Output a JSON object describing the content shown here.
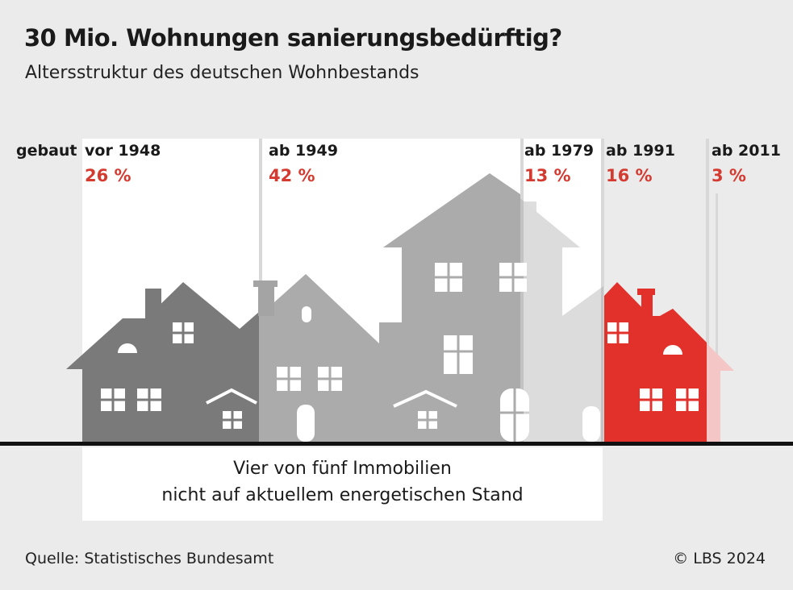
{
  "title": "30 Mio. Wohnungen sanierungsbedürftig?",
  "subtitle": "Altersstruktur des deutschen Wohnbestands",
  "row_label": "gebaut",
  "note_line1": "Vier von fünf Immobilien",
  "note_line2": "nicht auf aktuellem energetischen Stand",
  "source": "Quelle: Statistisches Bundesamt",
  "copyright": "© LBS 2024",
  "colors": {
    "background": "#ebebeb",
    "panel": "#ffffff",
    "old": "#7a7a7a",
    "mid": "#ababab",
    "light": "#cccccc",
    "recent": "#e2302b",
    "newest": "#f4c6c6",
    "accent_text": "#d43a2f"
  },
  "chart_data": {
    "type": "bar",
    "title": "30 Mio. Wohnungen sanierungsbedürftig?",
    "subtitle": "Altersstruktur des deutschen Wohnbestands",
    "unit": "%",
    "categories": [
      "vor 1948",
      "ab 1949",
      "ab 1979",
      "ab 1991",
      "ab 2011"
    ],
    "values": [
      26,
      42,
      13,
      16,
      3
    ],
    "value_labels": [
      "26 %",
      "42 %",
      "13 %",
      "16 %",
      "3 %"
    ]
  }
}
